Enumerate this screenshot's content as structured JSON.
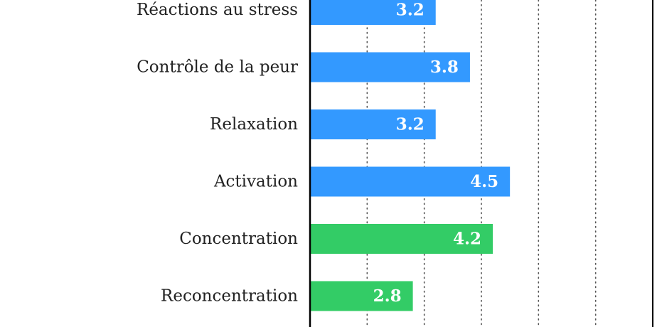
{
  "chart_data": {
    "type": "bar",
    "orientation": "horizontal",
    "categories": [
      "Réactions au stress",
      "Contrôle de la peur",
      "Relaxation",
      "Activation",
      "Concentration",
      "Reconcentration"
    ],
    "values": [
      3.2,
      3.8,
      3.2,
      4.5,
      4.2,
      2.8
    ],
    "value_labels": [
      "3.2",
      "3.8",
      "3.2",
      "4.5",
      "4.2",
      "2.8"
    ],
    "bar_colors": [
      "#3399ff",
      "#3399ff",
      "#3399ff",
      "#3399ff",
      "#33cc66",
      "#33cc66"
    ],
    "xlim": [
      1,
      7
    ],
    "grid": "vertical dotted",
    "legend": "none"
  }
}
